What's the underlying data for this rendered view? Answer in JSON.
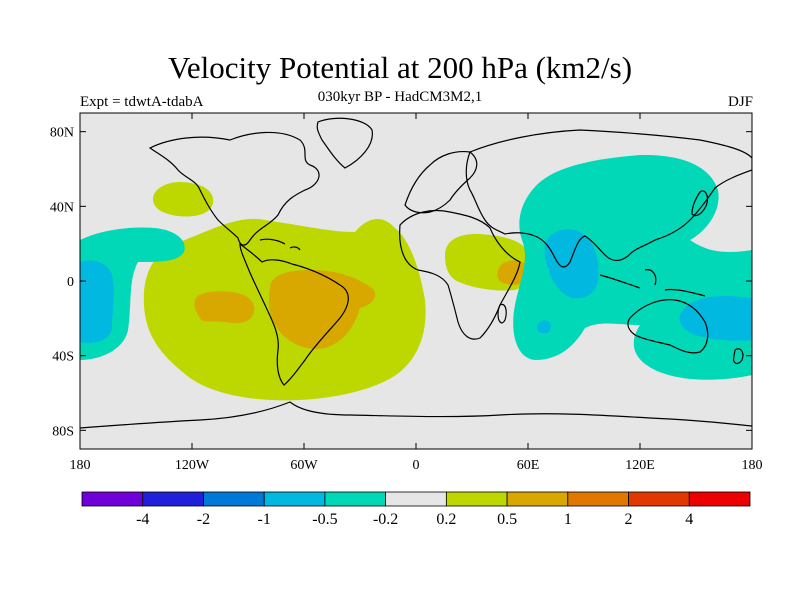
{
  "header": {
    "title": "Velocity Potential at 200 hPa (km2/s)",
    "subtitle": "030kyr BP - HadCM3M2,1",
    "left": "Expt = tdwtA-tdabA",
    "right": "DJF"
  },
  "axes": {
    "lat_ticks": [
      {
        "label": "80N",
        "lat": 80
      },
      {
        "label": "40N",
        "lat": 40
      },
      {
        "label": "0",
        "lat": 0
      },
      {
        "label": "40S",
        "lat": -40
      },
      {
        "label": "80S",
        "lat": -80
      }
    ],
    "lon_ticks": [
      {
        "label": "180",
        "lon": -180
      },
      {
        "label": "120W",
        "lon": -120
      },
      {
        "label": "60W",
        "lon": -60
      },
      {
        "label": "0",
        "lon": 0
      },
      {
        "label": "60E",
        "lon": 60
      },
      {
        "label": "120E",
        "lon": 120
      },
      {
        "label": "180",
        "lon": 180
      }
    ],
    "lon_range": [
      -180,
      180
    ],
    "lat_range": [
      -90,
      90
    ]
  },
  "colors": {
    "background": "#e6e6e6",
    "neg_light": "#00d8b8",
    "neg_mid": "#00b8e0",
    "pos_light": "#bcd800",
    "pos_mid": "#d8a800",
    "coast": "#000000"
  },
  "colorbar": {
    "colors": [
      "#7000d8",
      "#2020d8",
      "#0078d8",
      "#00b8e0",
      "#00d8b8",
      "#e6e6e6",
      "#bcd800",
      "#d8a800",
      "#e07800",
      "#e03800",
      "#ec0000"
    ],
    "labels": [
      "-4",
      "-2",
      "-1",
      "-0.5",
      "-0.2",
      "0.2",
      "0.5",
      "1",
      "2",
      "4"
    ]
  }
}
